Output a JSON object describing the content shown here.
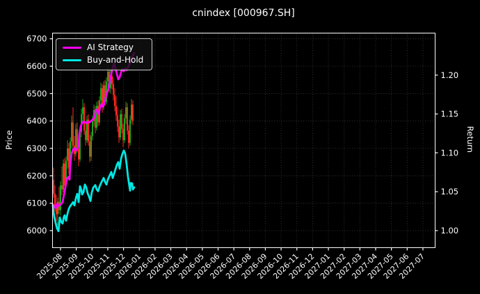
{
  "title": "cnindex [000967.SH]",
  "legend": {
    "position": "upper left",
    "entries": [
      {
        "label": "AI Strategy",
        "color": "#ff00f2"
      },
      {
        "label": "Buy-and-Hold",
        "color": "#00e8e4"
      }
    ]
  },
  "chart_data": {
    "type": "candlestick_with_lines",
    "title": "cnindex [000967.SH]",
    "grid": {
      "on": true,
      "style": "dotted"
    },
    "left_axis": {
      "label": "Price",
      "tick_values": [
        6000,
        6100,
        6200,
        6300,
        6400,
        6500,
        6600,
        6700
      ],
      "tick_labels": [
        "6000",
        "6100",
        "6200",
        "6300",
        "6400",
        "6500",
        "6600",
        "6700"
      ]
    },
    "right_axis": {
      "label": "Return",
      "tick_values": [
        1.0,
        1.05,
        1.1,
        1.15,
        1.2
      ],
      "tick_labels": [
        "1.00",
        "1.05",
        "1.10",
        "1.15",
        "1.20"
      ]
    },
    "x_axis": {
      "tick_labels": [
        "2025-08",
        "2025-09",
        "2025-10",
        "2025-11",
        "2025-12",
        "2026-01",
        "2026-02",
        "2026-03",
        "2026-04",
        "2026-05",
        "2026-06",
        "2026-07",
        "2026-08",
        "2026-09",
        "2026-10",
        "2026-11",
        "2026-12",
        "2027-01",
        "2027-02",
        "2027-03",
        "2027-04",
        "2027-05",
        "2027-06",
        "2027-07"
      ],
      "data_extent_note": "price/return data plotted only from 2025-08 to early 2026-01; rest of axis empty"
    },
    "colors": {
      "background": "#000000",
      "text": "#ffffff",
      "grid": "#3f3f3f",
      "spine": "#ffffff",
      "candle_up": "#1fa51f",
      "candle_down": "#ff2a20",
      "ai_strategy": "#ff00f2",
      "buy_and_hold": "#00e8e4"
    },
    "series": {
      "candles": {
        "name": "cnindex daily OHLC (price, left axis)",
        "x_unit": "px_along_time_axis",
        "x_start": 77,
        "x_step": 2,
        "ohlc": [
          [
            6185,
            6230,
            6120,
            6135
          ],
          [
            6135,
            6165,
            6070,
            6085
          ],
          [
            6085,
            6130,
            6035,
            6060
          ],
          [
            6060,
            6120,
            6020,
            6105
          ],
          [
            6105,
            6160,
            6060,
            6075
          ],
          [
            6075,
            6180,
            6055,
            6165
          ],
          [
            6165,
            6235,
            6130,
            6150
          ],
          [
            6150,
            6260,
            6140,
            6245
          ],
          [
            6245,
            6265,
            6145,
            6165
          ],
          [
            6165,
            6270,
            6155,
            6255
          ],
          [
            6255,
            6330,
            6225,
            6300
          ],
          [
            6300,
            6320,
            6205,
            6230
          ],
          [
            6230,
            6340,
            6215,
            6325
          ],
          [
            6325,
            6420,
            6300,
            6395
          ],
          [
            6395,
            6450,
            6290,
            6310
          ],
          [
            6310,
            6345,
            6255,
            6280
          ],
          [
            6280,
            6390,
            6270,
            6370
          ],
          [
            6370,
            6395,
            6285,
            6300
          ],
          [
            6300,
            6325,
            6235,
            6260
          ],
          [
            6260,
            6375,
            6250,
            6360
          ],
          [
            6360,
            6445,
            6340,
            6425
          ],
          [
            6425,
            6480,
            6390,
            6450
          ],
          [
            6450,
            6465,
            6350,
            6365
          ],
          [
            6365,
            6395,
            6310,
            6330
          ],
          [
            6330,
            6420,
            6320,
            6405
          ],
          [
            6405,
            6425,
            6310,
            6325
          ],
          [
            6325,
            6350,
            6250,
            6270
          ],
          [
            6270,
            6360,
            6255,
            6345
          ],
          [
            6345,
            6420,
            6330,
            6400
          ],
          [
            6400,
            6460,
            6380,
            6440
          ],
          [
            6440,
            6455,
            6355,
            6375
          ],
          [
            6375,
            6470,
            6365,
            6455
          ],
          [
            6455,
            6475,
            6380,
            6395
          ],
          [
            6395,
            6490,
            6385,
            6475
          ],
          [
            6475,
            6540,
            6455,
            6520
          ],
          [
            6520,
            6535,
            6430,
            6450
          ],
          [
            6450,
            6545,
            6440,
            6530
          ],
          [
            6530,
            6550,
            6455,
            6470
          ],
          [
            6470,
            6560,
            6460,
            6545
          ],
          [
            6545,
            6595,
            6520,
            6580
          ],
          [
            6580,
            6590,
            6505,
            6520
          ],
          [
            6520,
            6585,
            6500,
            6565
          ],
          [
            6565,
            6590,
            6515,
            6535
          ],
          [
            6535,
            6560,
            6475,
            6495
          ],
          [
            6495,
            6520,
            6435,
            6455
          ],
          [
            6455,
            6490,
            6400,
            6420
          ],
          [
            6420,
            6450,
            6360,
            6380
          ],
          [
            6380,
            6405,
            6320,
            6340
          ],
          [
            6340,
            6440,
            6330,
            6425
          ],
          [
            6425,
            6445,
            6355,
            6370
          ],
          [
            6370,
            6390,
            6305,
            6330
          ],
          [
            6330,
            6425,
            6320,
            6410
          ],
          [
            6410,
            6470,
            6390,
            6450
          ],
          [
            6450,
            6465,
            6350,
            6365
          ],
          [
            6365,
            6385,
            6300,
            6320
          ],
          [
            6320,
            6420,
            6310,
            6405
          ],
          [
            6405,
            6480,
            6390,
            6460
          ],
          [
            6460,
            6475,
            6385,
            6400
          ]
        ]
      },
      "ai_strategy": {
        "name": "AI Strategy",
        "axis_read": "left (price scale); approx 1.00 to 1.22 on right Return scale",
        "points": [
          [
            76,
            6096
          ],
          [
            78,
            6088
          ],
          [
            80,
            6082
          ],
          [
            82,
            6098
          ],
          [
            84,
            6090
          ],
          [
            86,
            6093
          ],
          [
            88,
            6097
          ],
          [
            90,
            6104
          ],
          [
            92,
            6132
          ],
          [
            94,
            6158
          ],
          [
            96,
            6186
          ],
          [
            98,
            6196
          ],
          [
            100,
            6186
          ],
          [
            101,
            6238
          ],
          [
            103,
            6282
          ],
          [
            105,
            6296
          ],
          [
            107,
            6300
          ],
          [
            109,
            6292
          ],
          [
            111,
            6297
          ],
          [
            113,
            6308
          ],
          [
            114,
            6352
          ],
          [
            116,
            6380
          ],
          [
            118,
            6392
          ],
          [
            120,
            6398
          ],
          [
            122,
            6396
          ],
          [
            124,
            6392
          ],
          [
            126,
            6398
          ],
          [
            128,
            6394
          ],
          [
            130,
            6398
          ],
          [
            132,
            6402
          ],
          [
            134,
            6408
          ],
          [
            136,
            6414
          ],
          [
            138,
            6442
          ],
          [
            140,
            6436
          ],
          [
            142,
            6426
          ],
          [
            144,
            6450
          ],
          [
            146,
            6462
          ],
          [
            148,
            6452
          ],
          [
            150,
            6466
          ],
          [
            152,
            6486
          ],
          [
            154,
            6504
          ],
          [
            156,
            6520
          ],
          [
            158,
            6548
          ],
          [
            160,
            6572
          ],
          [
            162,
            6594
          ],
          [
            164,
            6610
          ],
          [
            166,
            6592
          ],
          [
            168,
            6572
          ],
          [
            170,
            6552
          ],
          [
            172,
            6560
          ],
          [
            174,
            6578
          ],
          [
            176,
            6590
          ],
          [
            178,
            6582
          ],
          [
            180,
            6592
          ],
          [
            182,
            6586
          ],
          [
            184,
            6596
          ],
          [
            186,
            6606
          ],
          [
            188,
            6618
          ],
          [
            190,
            6632
          ],
          [
            193,
            6648
          ]
        ]
      },
      "buy_and_hold": {
        "name": "Buy-and-Hold",
        "axis_read": "left (price scale); approx 1.00 to 1.10 on right Return scale",
        "points": [
          [
            76,
            6092
          ],
          [
            77,
            6068
          ],
          [
            78,
            6050
          ],
          [
            80,
            6028
          ],
          [
            82,
            6008
          ],
          [
            84,
            5998
          ],
          [
            85,
            6022
          ],
          [
            86,
            6048
          ],
          [
            88,
            6032
          ],
          [
            90,
            6026
          ],
          [
            92,
            6052
          ],
          [
            93,
            6056
          ],
          [
            95,
            6036
          ],
          [
            97,
            6062
          ],
          [
            99,
            6080
          ],
          [
            101,
            6090
          ],
          [
            103,
            6096
          ],
          [
            105,
            6104
          ],
          [
            107,
            6092
          ],
          [
            109,
            6118
          ],
          [
            111,
            6134
          ],
          [
            113,
            6104
          ],
          [
            115,
            6162
          ],
          [
            117,
            6148
          ],
          [
            118,
            6132
          ],
          [
            120,
            6140
          ],
          [
            122,
            6168
          ],
          [
            124,
            6158
          ],
          [
            126,
            6136
          ],
          [
            128,
            6124
          ],
          [
            130,
            6108
          ],
          [
            132,
            6140
          ],
          [
            134,
            6156
          ],
          [
            135,
            6160
          ],
          [
            137,
            6166
          ],
          [
            139,
            6150
          ],
          [
            141,
            6144
          ],
          [
            143,
            6160
          ],
          [
            145,
            6172
          ],
          [
            147,
            6182
          ],
          [
            149,
            6192
          ],
          [
            151,
            6178
          ],
          [
            153,
            6168
          ],
          [
            155,
            6186
          ],
          [
            157,
            6198
          ],
          [
            159,
            6208
          ],
          [
            160,
            6214
          ],
          [
            162,
            6192
          ],
          [
            164,
            6208
          ],
          [
            166,
            6224
          ],
          [
            168,
            6240
          ],
          [
            170,
            6250
          ],
          [
            172,
            6226
          ],
          [
            174,
            6262
          ],
          [
            176,
            6280
          ],
          [
            178,
            6292
          ],
          [
            180,
            6280
          ],
          [
            182,
            6242
          ],
          [
            184,
            6196
          ],
          [
            186,
            6162
          ],
          [
            187,
            6146
          ],
          [
            188,
            6174
          ],
          [
            190,
            6172
          ],
          [
            191,
            6150
          ],
          [
            193,
            6158
          ]
        ]
      }
    }
  }
}
